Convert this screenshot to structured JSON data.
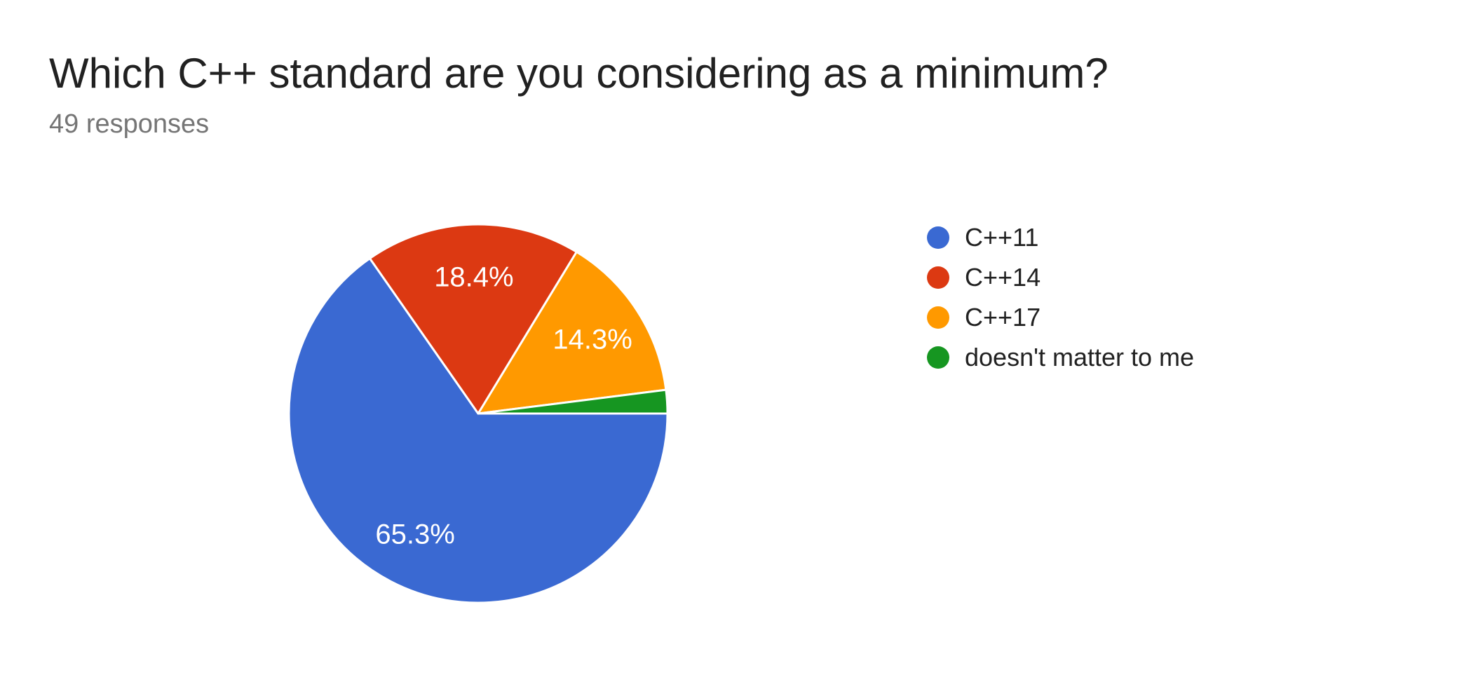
{
  "header": {
    "title": "Which C++ standard are you considering as a minimum?",
    "subtitle": "49 responses"
  },
  "chart_data": {
    "type": "pie",
    "title": "Which C++ standard are you considering as a minimum?",
    "responses_count": 49,
    "categories": [
      "C++11",
      "C++14",
      "C++17",
      "doesn't matter to me"
    ],
    "values": [
      65.3,
      18.4,
      14.3,
      2.0
    ],
    "slice_labels": [
      "65.3%",
      "18.4%",
      "14.3%",
      ""
    ],
    "colors": [
      "#3A69D2",
      "#DC3912",
      "#FF9900",
      "#169621"
    ],
    "legend_position": "right",
    "start_angle_deg": 0,
    "direction": "clockwise",
    "min_label_pct": 3,
    "label_color": "#ffffff",
    "slice_stroke_color": "#ffffff"
  },
  "style": {
    "background": "#ffffff",
    "title_color": "#212121",
    "subtitle_color": "#757575",
    "legend_text_color": "#212121"
  }
}
